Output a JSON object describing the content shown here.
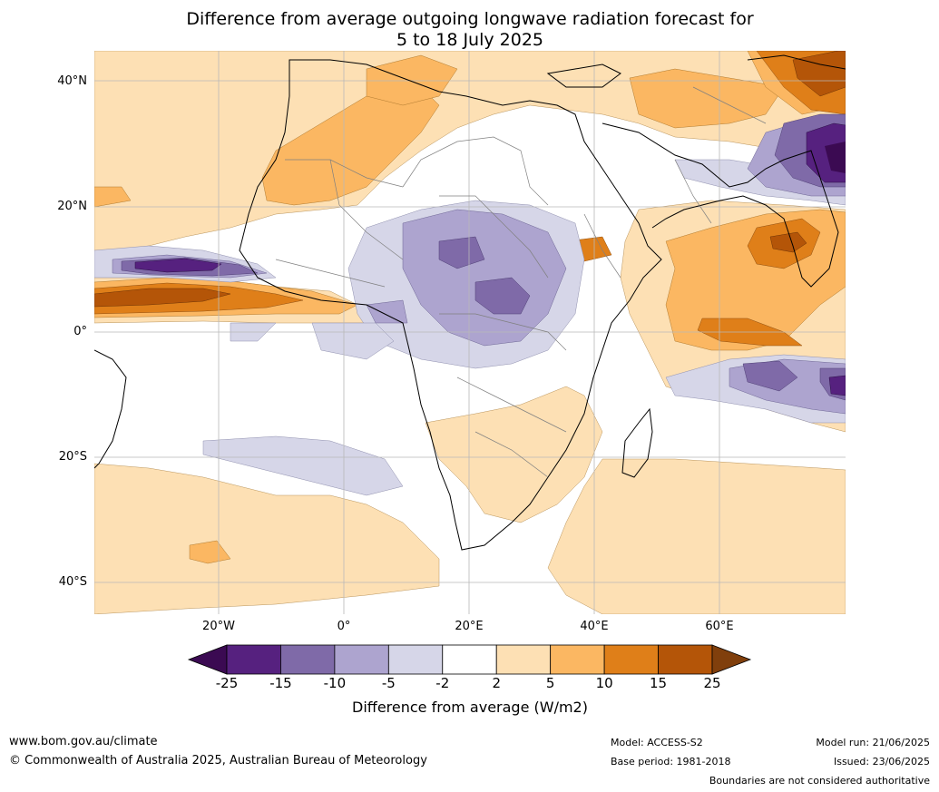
{
  "title_line1": "Difference from average outgoing longwave radiation forecast for",
  "title_line2": "5 to 18 July 2025",
  "lat_labels": [
    "40°N",
    "20°N",
    "0°",
    "20°S",
    "40°S"
  ],
  "lon_labels": [
    "20°W",
    "0°",
    "20°E",
    "40°E",
    "60°E"
  ],
  "colorbar": {
    "ticks": [
      "-25",
      "-15",
      "-10",
      "-5",
      "-2",
      "2",
      "5",
      "10",
      "15",
      "25"
    ],
    "colors": [
      "#3b0a52",
      "#56217f",
      "#7f6aa8",
      "#ada4cf",
      "#d6d6e8",
      "#ffffff",
      "#fde0b4",
      "#fbb762",
      "#df7f19",
      "#b45508",
      "#803f0c"
    ],
    "label": "Difference from average (W/m2)"
  },
  "footer": {
    "website": "www.bom.gov.au/climate",
    "copyright": "© Commonwealth of Australia 2025, Australian Bureau of Meteorology",
    "model": "Model: ACCESS-S2",
    "base_period": "Base period: 1981-2018",
    "model_run": "Model run: 21/06/2025",
    "issued": "Issued: 23/06/2025",
    "disclaimer": "Boundaries are not considered authoritative"
  }
}
